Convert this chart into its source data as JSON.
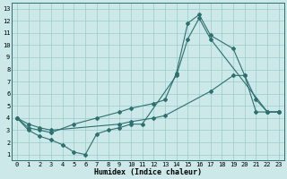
{
  "xlabel": "Humidex (Indice chaleur)",
  "bg_color": "#cce8e8",
  "line_color": "#2d7070",
  "grid_color": "#99cccc",
  "xlim": [
    -0.5,
    23.5
  ],
  "ylim": [
    0.5,
    13.5
  ],
  "xticks": [
    0,
    1,
    2,
    3,
    4,
    5,
    6,
    7,
    8,
    9,
    10,
    11,
    12,
    13,
    14,
    15,
    16,
    17,
    18,
    19,
    20,
    21,
    22,
    23
  ],
  "yticks": [
    1,
    2,
    3,
    4,
    5,
    6,
    7,
    8,
    9,
    10,
    11,
    12,
    13
  ],
  "line1_x": [
    0,
    1,
    2,
    3,
    4,
    5,
    6,
    7,
    8,
    9,
    10,
    11,
    14,
    15,
    16,
    17,
    22,
    23
  ],
  "line1_y": [
    4,
    3,
    2.5,
    2.2,
    1.8,
    1.2,
    1.0,
    2.7,
    3.0,
    3.2,
    3.5,
    3.5,
    7.5,
    10.5,
    12.2,
    10.5,
    4.5,
    4.5
  ],
  "line2_x": [
    0,
    1,
    2,
    3,
    5,
    7,
    9,
    10,
    12,
    13,
    14,
    15,
    16,
    17,
    19,
    20,
    21,
    22,
    23
  ],
  "line2_y": [
    4,
    3.2,
    3.0,
    2.8,
    3.5,
    4.0,
    4.5,
    4.8,
    5.2,
    5.5,
    7.7,
    11.8,
    12.5,
    10.8,
    9.7,
    7.5,
    5.5,
    4.5,
    4.5
  ],
  "line3_x": [
    0,
    1,
    2,
    3,
    9,
    10,
    12,
    13,
    17,
    19,
    20,
    21,
    22,
    23
  ],
  "line3_y": [
    4,
    3.5,
    3.2,
    3.0,
    3.5,
    3.7,
    4.0,
    4.2,
    6.2,
    7.5,
    7.5,
    4.5,
    4.5,
    4.5
  ]
}
